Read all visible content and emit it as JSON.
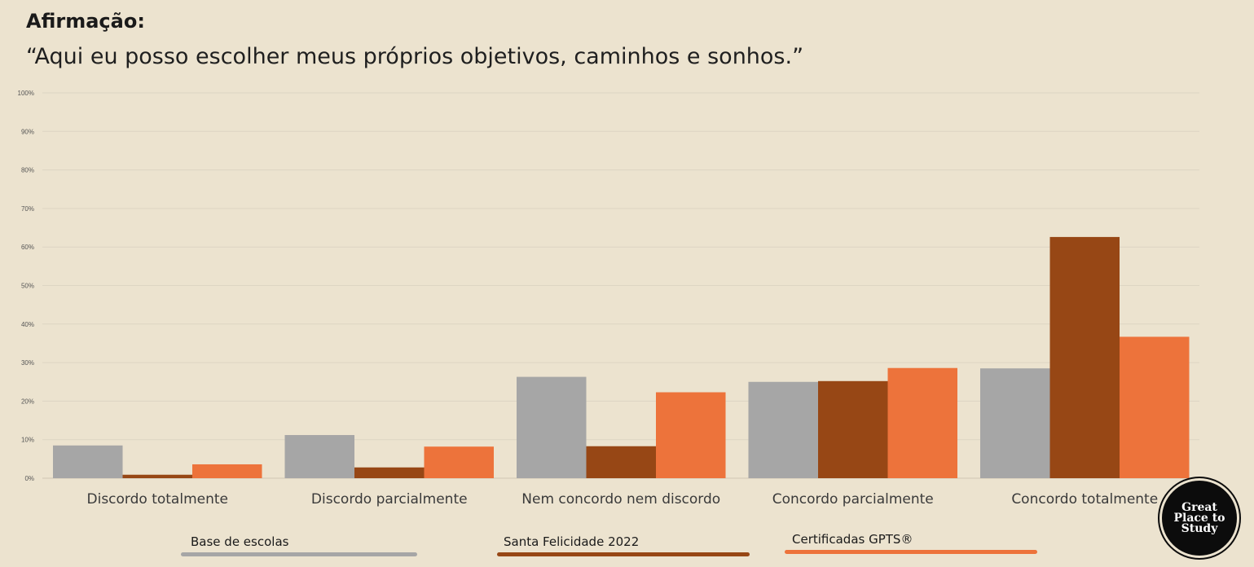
{
  "header": {
    "label": "Afirmação:",
    "statement": "“Aqui eu posso escolher meus próprios objetivos, caminhos e sonhos.”"
  },
  "legend": {
    "items": [
      {
        "label": "Base de escolas",
        "color": "#a6a6a6"
      },
      {
        "label": "Santa Felicidade 2022",
        "color": "#974715"
      },
      {
        "label": "Certificadas GPTS®",
        "color": "#ed733b"
      }
    ]
  },
  "badge": {
    "line1": "Great",
    "line2": "Place to",
    "line3": "Study"
  },
  "chart_data": {
    "type": "bar",
    "categories": [
      "Discordo totalmente",
      "Discordo parcialmente",
      "Nem concordo nem discordo",
      "Concordo parcialmente",
      "Concordo totalmente"
    ],
    "series": [
      {
        "name": "Base de escolas",
        "values": [
          8.5,
          11.2,
          26.3,
          25.0,
          28.5
        ],
        "color": "#a6a6a6"
      },
      {
        "name": "Santa Felicidade 2022",
        "values": [
          0.9,
          2.8,
          8.3,
          25.2,
          62.6
        ],
        "color": "#974715"
      },
      {
        "name": "Certificadas GPTS®",
        "values": [
          3.6,
          8.2,
          22.3,
          28.6,
          36.7
        ],
        "color": "#ed733b"
      }
    ],
    "ylim": [
      0,
      100
    ],
    "yticks": [
      "0%",
      "10%",
      "20%",
      "30%",
      "40%",
      "50%",
      "60%",
      "70%",
      "80%",
      "90%",
      "100%"
    ],
    "grid": true,
    "legend_position": "bottom"
  }
}
